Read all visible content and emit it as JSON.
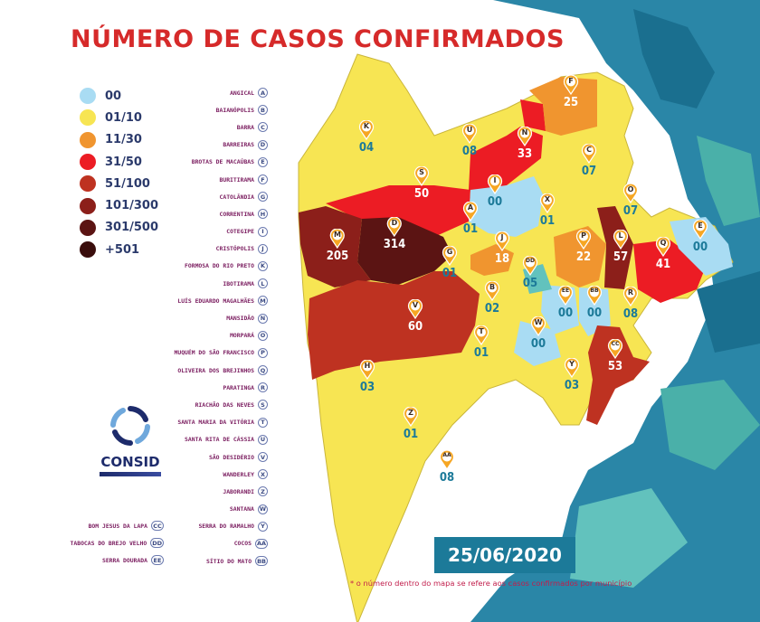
{
  "title": "NÚMERO DE CASOS CONFIRMADOS",
  "legend": [
    {
      "label": "00",
      "color": "#a9dcf3"
    },
    {
      "label": "01/10",
      "color": "#f7e553"
    },
    {
      "label": "11/30",
      "color": "#f0952f"
    },
    {
      "label": "31/50",
      "color": "#ec1c24"
    },
    {
      "label": "51/100",
      "color": "#be3221"
    },
    {
      "label": "101/300",
      "color": "#8c1f1a"
    },
    {
      "label": "301/500",
      "color": "#5b1413"
    },
    {
      "label": "+501",
      "color": "#3a0d0c"
    }
  ],
  "municipalities": [
    {
      "name": "ANGICAL",
      "code": "A"
    },
    {
      "name": "BAIANÓPOLIS",
      "code": "B"
    },
    {
      "name": "BARRA",
      "code": "C"
    },
    {
      "name": "BARREIRAS",
      "code": "D"
    },
    {
      "name": "BROTAS DE MACAÚBAS",
      "code": "E"
    },
    {
      "name": "BURITIRAMA",
      "code": "F"
    },
    {
      "name": "CATOLÂNDIA",
      "code": "G"
    },
    {
      "name": "CORRENTINA",
      "code": "H"
    },
    {
      "name": "COTEGIPE",
      "code": "I"
    },
    {
      "name": "CRISTÓPOLIS",
      "code": "J"
    },
    {
      "name": "FORMOSA DO RIO PRETO",
      "code": "K"
    },
    {
      "name": "IBOTIRAMA",
      "code": "L"
    },
    {
      "name": "LUÍS EDUARDO MAGALHÃES",
      "code": "M"
    },
    {
      "name": "MANSIDÃO",
      "code": "N"
    },
    {
      "name": "MORPARÁ",
      "code": "O"
    },
    {
      "name": "MUQUÉM DO SÃO FRANCISCO",
      "code": "P"
    },
    {
      "name": "OLIVEIRA DOS BREJINHOS",
      "code": "Q"
    },
    {
      "name": "PARATINGA",
      "code": "R"
    },
    {
      "name": "RIACHÃO DAS NEVES",
      "code": "S"
    },
    {
      "name": "SANTA MARIA DA VITÓRIA",
      "code": "T"
    },
    {
      "name": "SANTA RITA DE CÁSSIA",
      "code": "U"
    },
    {
      "name": "SÃO DESIDÉRIO",
      "code": "V"
    },
    {
      "name": "WANDERLEY",
      "code": "X"
    },
    {
      "name": "JABORANDI",
      "code": "Z"
    },
    {
      "name": "SANTANA",
      "code": "W"
    },
    {
      "name": "SERRA DO RAMALHO",
      "code": "Y"
    },
    {
      "name": "COCOS",
      "code": "AA"
    },
    {
      "name": "SÍTIO DO MATO",
      "code": "BB"
    }
  ],
  "extra_municipalities": [
    {
      "name": "BOM JESUS DA LAPA",
      "code": "CC"
    },
    {
      "name": "TABOCAS DO BREJO VELHO",
      "code": "DD"
    },
    {
      "name": "SERRA DOURADA",
      "code": "EE"
    }
  ],
  "pins": [
    {
      "code": "K",
      "count": "04",
      "color": "#1c7a99"
    },
    {
      "code": "U",
      "count": "08",
      "color": "#1c7a99"
    },
    {
      "code": "N",
      "count": "33",
      "color": "#ffffff"
    },
    {
      "code": "F",
      "count": "25",
      "color": "#ffffff"
    },
    {
      "code": "C",
      "count": "07",
      "color": "#1c7a99"
    },
    {
      "code": "S",
      "count": "50",
      "color": "#ffffff"
    },
    {
      "code": "I",
      "count": "00",
      "color": "#1c7a99"
    },
    {
      "code": "X",
      "count": "01",
      "color": "#1c7a99"
    },
    {
      "code": "O",
      "count": "07",
      "color": "#1c7a99"
    },
    {
      "code": "E",
      "count": "00",
      "color": "#1c7a99"
    },
    {
      "code": "A",
      "count": "01",
      "color": "#1c7a99"
    },
    {
      "code": "D",
      "count": "314",
      "color": "#ffffff"
    },
    {
      "code": "M",
      "count": "205",
      "color": "#ffffff"
    },
    {
      "code": "G",
      "count": "01",
      "color": "#1c7a99"
    },
    {
      "code": "J",
      "count": "18",
      "color": "#ffffff"
    },
    {
      "code": "DD",
      "count": "05",
      "color": "#1c7a99"
    },
    {
      "code": "P",
      "count": "22",
      "color": "#ffffff"
    },
    {
      "code": "L",
      "count": "57",
      "color": "#ffffff"
    },
    {
      "code": "Q",
      "count": "41",
      "color": "#ffffff"
    },
    {
      "code": "B",
      "count": "02",
      "color": "#1c7a99"
    },
    {
      "code": "EE",
      "count": "00",
      "color": "#1c7a99"
    },
    {
      "code": "BB",
      "count": "00",
      "color": "#1c7a99"
    },
    {
      "code": "R",
      "count": "08",
      "color": "#1c7a99"
    },
    {
      "code": "V",
      "count": "60",
      "color": "#ffffff"
    },
    {
      "code": "W",
      "count": "00",
      "color": "#1c7a99"
    },
    {
      "code": "T",
      "count": "01",
      "color": "#1c7a99"
    },
    {
      "code": "CC",
      "count": "53",
      "color": "#ffffff"
    },
    {
      "code": "H",
      "count": "03",
      "color": "#1c7a99"
    },
    {
      "code": "Y",
      "count": "03",
      "color": "#1c7a99"
    },
    {
      "code": "Z",
      "count": "01",
      "color": "#1c7a99"
    },
    {
      "code": "AA",
      "count": "08",
      "color": "#1c7a99"
    }
  ],
  "logo": {
    "name": "CONSID"
  },
  "date": "25/06/2020",
  "footnote": "o número dentro do mapa se refere aos casos confirmados por município",
  "footnote_marker": "*"
}
